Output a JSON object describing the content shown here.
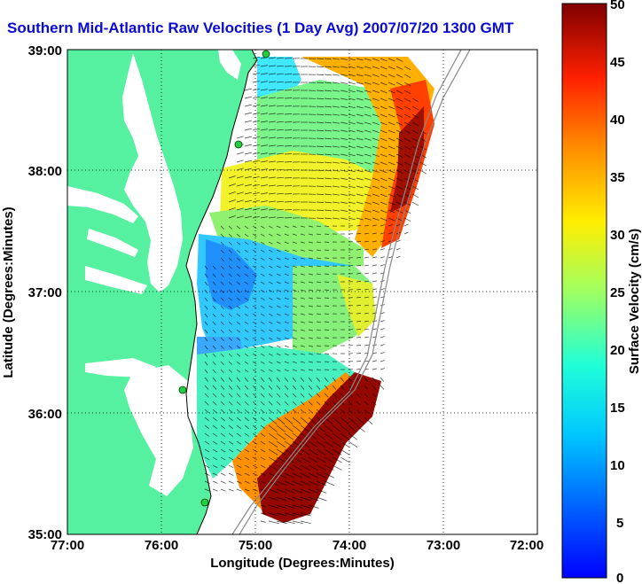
{
  "figure": {
    "title": "Southern Mid-Atlantic Raw Velocities (1 Day Avg) 2007/07/20 1300 GMT",
    "xlabel": "Longitude (Degrees:Minutes)",
    "ylabel": "Latitude (Degrees:Minutes)",
    "colorbar_label": "Surface Velocity (cm/s)",
    "title_color": "#0b0bd6"
  },
  "axes": {
    "x_ticks": [
      "77:00",
      "76:00",
      "75:00",
      "74:00",
      "73:00",
      "72:00"
    ],
    "y_ticks": [
      "39:00",
      "38:00",
      "37:00",
      "36:00",
      "35:00"
    ],
    "lon_range": [
      -77,
      -72
    ],
    "lat_range": [
      35,
      39
    ],
    "grid": "dotted"
  },
  "colorbar": {
    "ticks": [
      "50",
      "45",
      "40",
      "35",
      "30",
      "25",
      "20",
      "15",
      "10",
      "5",
      "0"
    ],
    "range": [
      0,
      50
    ],
    "colormap": "jet"
  },
  "map": {
    "land_color": "#55f0a0",
    "ocean_color": "#ffffff",
    "stations": "green-dot-icon"
  }
}
